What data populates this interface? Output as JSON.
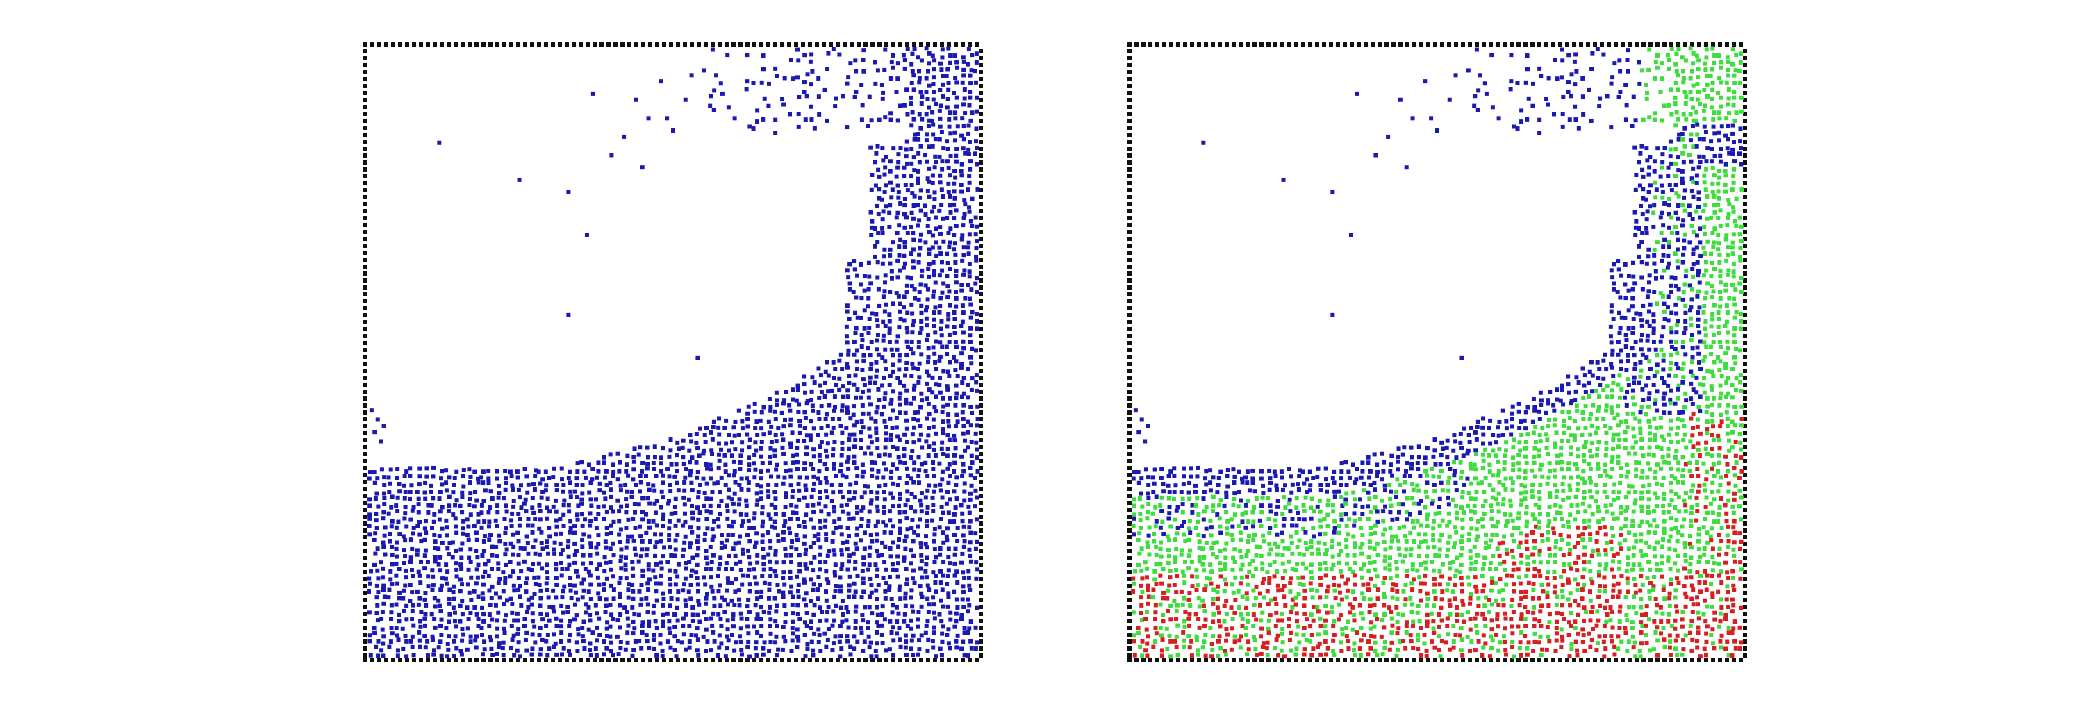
{
  "figure": {
    "panels": [
      {
        "id": "left",
        "description_color_scheme": "single",
        "colors": {
          "border": "#111111",
          "particle": "#1a1ab0"
        }
      },
      {
        "id": "right",
        "description_color_scheme": "three-state",
        "colors": {
          "border": "#111111",
          "state_a": "#1a1ab0",
          "state_b": "#3fdc3f",
          "state_c": "#d42020"
        }
      }
    ]
  }
}
